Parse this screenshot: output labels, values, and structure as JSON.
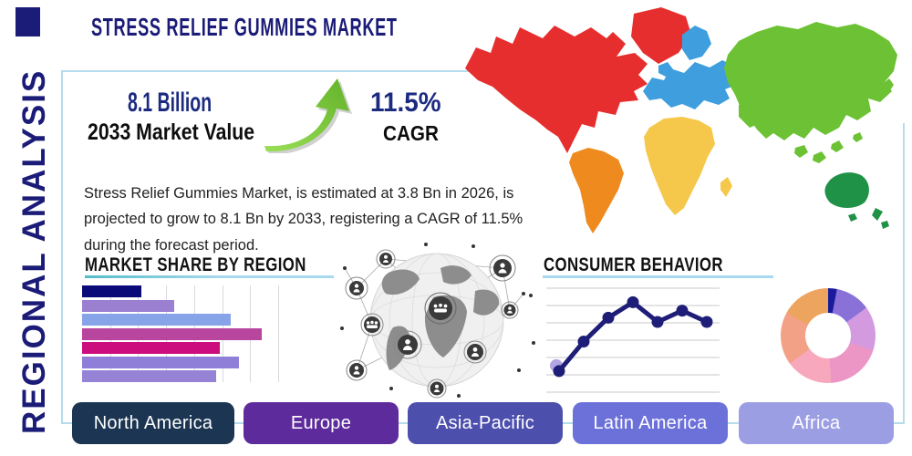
{
  "header": {
    "title": "STRESS RELIEF GUMMIES MARKET",
    "sidebar_label": "REGIONAL ANALYSIS"
  },
  "stats": {
    "market_value": "8.1 Billion",
    "market_value_label": "2033 Market Value",
    "cagr_value": "11.5%",
    "cagr_label": "CAGR",
    "growth_arrow_icon": "curved-up-right-arrow",
    "growth_arrow_color": "#76c03a"
  },
  "description": "Stress Relief Gummies Market, is estimated at 3.8 Bn in 2026, is projected to grow to 8.1 Bn by 2033, registering a CAGR of 11.5% during the forecast period.",
  "sections": {
    "market_share": "MARKET SHARE BY REGION",
    "consumer_behavior": "CONSUMER BEHAVIOR"
  },
  "colors": {
    "primary_navy": "#1b1b78",
    "stat_navy": "#1c2b80",
    "text_dark": "#222222",
    "box_border": "#b5dcec",
    "underline_teal": "#52bcc8",
    "underline_blue": "#a9d9ee"
  },
  "region_buttons": [
    {
      "label": "North America",
      "color": "#1b3552"
    },
    {
      "label": "Europe",
      "color": "#5e2b9c"
    },
    {
      "label": "Asia-Pacific",
      "color": "#4d4fad"
    },
    {
      "label": "Latin America",
      "color": "#6c70d9"
    },
    {
      "label": "Africa",
      "color": "#9c9ee4"
    }
  ],
  "map": {
    "regions": [
      {
        "name": "North America",
        "color": "#e62e2e"
      },
      {
        "name": "South America",
        "color": "#ef8a1e"
      },
      {
        "name": "Europe",
        "color": "#3f9edd"
      },
      {
        "name": "Africa",
        "color": "#f5c84c"
      },
      {
        "name": "Asia",
        "color": "#6cc234"
      },
      {
        "name": "Oceania",
        "color": "#209247"
      }
    ]
  },
  "chart_data": [
    {
      "id": "market_share_by_region",
      "type": "bar",
      "orientation": "horizontal",
      "title": "MARKET SHARE BY REGION",
      "values": [
        21,
        33,
        53,
        64,
        49,
        56,
        48
      ],
      "colors": [
        "#0a0a78",
        "#9b7fd0",
        "#88a4e8",
        "#b8459e",
        "#cc0d7e",
        "#8f7fd8",
        "#9683d6"
      ],
      "xlim": [
        0,
        70
      ],
      "grid": true,
      "gridline_count": 7
    },
    {
      "id": "consumer_behavior",
      "type": "line",
      "title": "CONSUMER BEHAVIOR",
      "x": [
        1,
        2,
        3,
        4,
        5,
        6,
        7
      ],
      "values": [
        1.5,
        3.6,
        5.3,
        6.4,
        5.0,
        5.8,
        5.0
      ],
      "ylim": [
        0,
        7.4
      ],
      "grid": true,
      "gridline_count": 7,
      "line_color": "#1e1e78",
      "marker": "filled-circle",
      "first_point_halo_color": "#b3a4e4"
    },
    {
      "id": "regional_split_donut",
      "type": "pie",
      "donut": true,
      "slices": [
        {
          "color": "#1a1a9c",
          "value": 3
        },
        {
          "color": "#8a71d8",
          "value": 12
        },
        {
          "color": "#d49ae0",
          "value": 15
        },
        {
          "color": "#eb96c5",
          "value": 19
        },
        {
          "color": "#f7a8bc",
          "value": 16
        },
        {
          "color": "#f2a187",
          "value": 18
        },
        {
          "color": "#eda45f",
          "value": 17
        }
      ]
    }
  ]
}
